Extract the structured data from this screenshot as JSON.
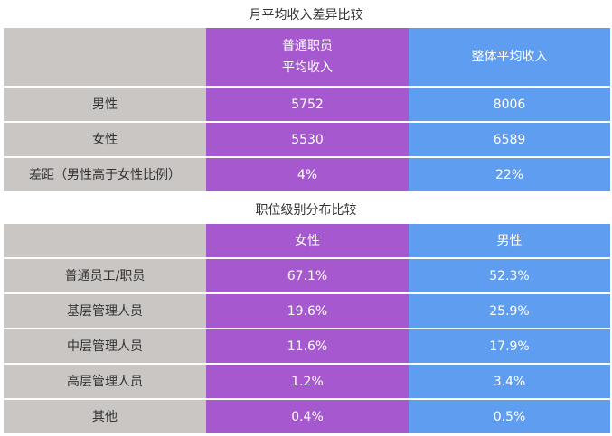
{
  "income": {
    "title": "月平均收入差异比较",
    "header": {
      "col1_line1": "普通职员",
      "col1_line2": "平均收入",
      "col2": "整体平均收入"
    },
    "rows": [
      {
        "label": "男性",
        "v1": "5752",
        "v2": "8006"
      },
      {
        "label": "女性",
        "v1": "5530",
        "v2": "6589"
      },
      {
        "label": "差距（男性高于女性比例）",
        "v1": "4%",
        "v2": "22%"
      }
    ]
  },
  "position": {
    "title": "职位级别分布比较",
    "header": {
      "col1": "女性",
      "col2": "男性"
    },
    "rows": [
      {
        "label": "普通员工/职员",
        "v1": "67.1%",
        "v2": "52.3%"
      },
      {
        "label": "基层管理人员",
        "v1": "19.6%",
        "v2": "25.9%"
      },
      {
        "label": "中层管理人员",
        "v1": "11.6%",
        "v2": "17.9%"
      },
      {
        "label": "高层管理人员",
        "v1": "1.2%",
        "v2": "3.4%"
      },
      {
        "label": "其他",
        "v1": "0.4%",
        "v2": "0.5%"
      }
    ]
  },
  "colors": {
    "label_bg": "#c9c6c4",
    "purple": "#a659cf",
    "blue": "#5f9df0"
  }
}
